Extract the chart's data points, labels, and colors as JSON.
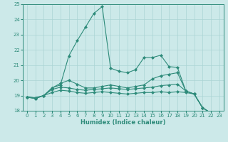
{
  "x_values": [
    0,
    1,
    2,
    3,
    4,
    5,
    6,
    7,
    8,
    9,
    10,
    11,
    12,
    13,
    14,
    15,
    16,
    17,
    18,
    19,
    20,
    21,
    22,
    23
  ],
  "series": [
    [
      18.9,
      18.8,
      19.0,
      19.5,
      19.7,
      21.6,
      22.6,
      23.5,
      24.4,
      24.85,
      20.8,
      20.6,
      20.5,
      20.7,
      21.5,
      21.5,
      21.65,
      20.9,
      20.85,
      19.3,
      19.1,
      18.2,
      17.85,
      17.7
    ],
    [
      18.9,
      18.8,
      19.0,
      19.5,
      19.8,
      20.0,
      19.75,
      19.5,
      19.5,
      19.6,
      19.7,
      19.6,
      19.5,
      19.6,
      19.7,
      20.1,
      20.3,
      20.4,
      20.5,
      19.3,
      19.1,
      18.2,
      17.85,
      17.7
    ],
    [
      18.9,
      18.85,
      19.0,
      19.4,
      19.55,
      19.5,
      19.4,
      19.35,
      19.4,
      19.45,
      19.5,
      19.45,
      19.4,
      19.45,
      19.5,
      19.55,
      19.65,
      19.7,
      19.75,
      19.3,
      19.1,
      18.2,
      17.85,
      17.7
    ],
    [
      18.9,
      18.85,
      19.0,
      19.2,
      19.35,
      19.3,
      19.2,
      19.15,
      19.2,
      19.25,
      19.2,
      19.15,
      19.1,
      19.15,
      19.2,
      19.2,
      19.25,
      19.2,
      19.25,
      19.2,
      19.1,
      18.2,
      17.85,
      17.7
    ]
  ],
  "line_color": "#2e8b7a",
  "marker": "D",
  "markersize": 2,
  "linewidth": 0.8,
  "bg_color": "#cce9e9",
  "grid_color": "#aad4d4",
  "xlabel": "Humidex (Indice chaleur)",
  "ylim": [
    18,
    25
  ],
  "xlim": [
    -0.5,
    23.5
  ],
  "yticks": [
    18,
    19,
    20,
    21,
    22,
    23,
    24,
    25
  ],
  "xticks": [
    0,
    1,
    2,
    3,
    4,
    5,
    6,
    7,
    8,
    9,
    10,
    11,
    12,
    13,
    14,
    15,
    16,
    17,
    18,
    19,
    20,
    21,
    22,
    23
  ],
  "tick_labelsize": 5,
  "xlabel_fontsize": 6,
  "figwidth": 3.2,
  "figheight": 2.0,
  "dpi": 100
}
